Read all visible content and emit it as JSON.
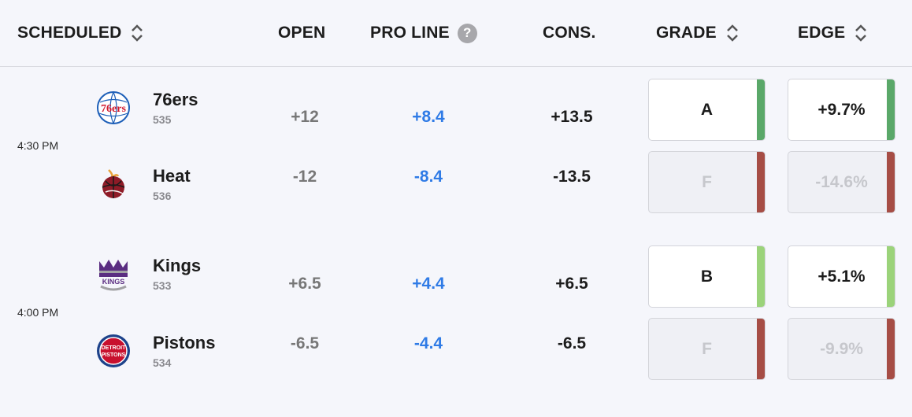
{
  "header": {
    "scheduled": "SCHEDULED",
    "open": "OPEN",
    "pro_line": "PRO LINE",
    "help": "?",
    "cons": "CONS.",
    "grade": "GRADE",
    "edge": "EDGE"
  },
  "colors": {
    "green": "#5aa869",
    "light_green": "#9bd37a",
    "red": "#a64d45",
    "blue": "#2f7be6"
  },
  "games": [
    {
      "time": "4:30 PM",
      "teams": [
        {
          "name": "76ers",
          "number": "535",
          "open": "+12",
          "pro_line": "+8.4",
          "cons": "+13.5",
          "grade": "A",
          "edge": "+9.7%",
          "logo_icon": "76ers-logo-icon"
        },
        {
          "name": "Heat",
          "number": "536",
          "open": "-12",
          "pro_line": "-8.4",
          "cons": "-13.5",
          "grade": "F",
          "edge": "-14.6%",
          "logo_icon": "heat-logo-icon"
        }
      ]
    },
    {
      "time": "4:00 PM",
      "teams": [
        {
          "name": "Kings",
          "number": "533",
          "open": "+6.5",
          "pro_line": "+4.4",
          "cons": "+6.5",
          "grade": "B",
          "edge": "+5.1%",
          "logo_icon": "kings-logo-icon"
        },
        {
          "name": "Pistons",
          "number": "534",
          "open": "-6.5",
          "pro_line": "-4.4",
          "cons": "-6.5",
          "grade": "F",
          "edge": "-9.9%",
          "logo_icon": "pistons-logo-icon"
        }
      ]
    }
  ]
}
